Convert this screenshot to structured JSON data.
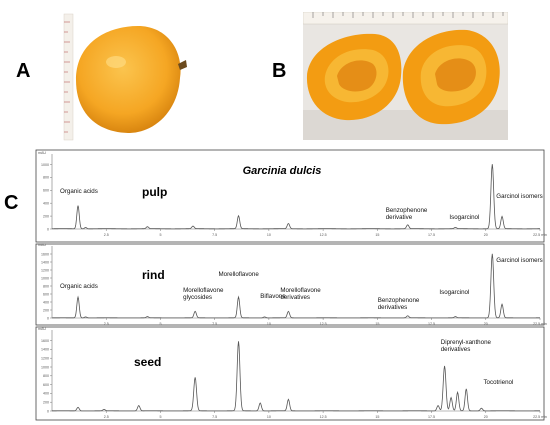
{
  "figure": {
    "panel_labels": {
      "a": "A",
      "b": "B",
      "c": "C"
    },
    "title": "Garcinia dulcis",
    "mau_label": "mAU",
    "x_ticks": [
      "2.5",
      "5",
      "7.5",
      "10",
      "12.5",
      "15",
      "17.5",
      "20",
      "22.5 min"
    ]
  },
  "chart_data": [
    {
      "type": "line",
      "panel": "pulp",
      "series_label": "pulp",
      "y_ticks": [
        "0",
        "200",
        "400",
        "600",
        "800",
        "1000"
      ],
      "ylim": [
        0,
        1100
      ],
      "xlim": [
        0,
        22.5
      ],
      "peaks": [
        {
          "x": 1.2,
          "y": 360
        },
        {
          "x": 1.55,
          "y": 20
        },
        {
          "x": 4.4,
          "y": 30
        },
        {
          "x": 6.5,
          "y": 40
        },
        {
          "x": 8.6,
          "y": 200
        },
        {
          "x": 10.9,
          "y": 80
        },
        {
          "x": 16.4,
          "y": 60
        },
        {
          "x": 18.6,
          "y": 20
        },
        {
          "x": 20.3,
          "y": 1000
        },
        {
          "x": 20.75,
          "y": 190
        }
      ],
      "annotations": [
        {
          "text": "Organic acids",
          "x": 1.2
        },
        {
          "text": "Benzophenone derivative",
          "x": 16.4
        },
        {
          "text": "Isogarcinol",
          "x": 18.6
        },
        {
          "text": "Garcinol isomers",
          "x": 20.3
        }
      ]
    },
    {
      "type": "line",
      "panel": "rind",
      "series_label": "rind",
      "y_ticks": [
        "0",
        "200",
        "400",
        "600",
        "800",
        "1000",
        "1200",
        "1400",
        "1600"
      ],
      "ylim": [
        0,
        1700
      ],
      "xlim": [
        0,
        22.5
      ],
      "peaks": [
        {
          "x": 1.2,
          "y": 520
        },
        {
          "x": 1.55,
          "y": 25
        },
        {
          "x": 4.4,
          "y": 30
        },
        {
          "x": 6.6,
          "y": 160
        },
        {
          "x": 8.6,
          "y": 520
        },
        {
          "x": 9.8,
          "y": 25
        },
        {
          "x": 10.9,
          "y": 160
        },
        {
          "x": 16.4,
          "y": 50
        },
        {
          "x": 18.6,
          "y": 30
        },
        {
          "x": 20.3,
          "y": 1600
        },
        {
          "x": 20.75,
          "y": 340
        }
      ],
      "annotations": [
        {
          "text": "Organic acids",
          "x": 1.2
        },
        {
          "text": "Morelloflavone glycosides",
          "x": 6.6
        },
        {
          "text": "Morelloflavone",
          "x": 8.6
        },
        {
          "text": "Biflavone",
          "x": 9.6
        },
        {
          "text": "Morelloflavone derivatives",
          "x": 10.9
        },
        {
          "text": "Benzophenone derivatives",
          "x": 16.4
        },
        {
          "text": "Isogarcinol",
          "x": 18.6
        },
        {
          "text": "Garcinol isomers",
          "x": 20.3
        }
      ]
    },
    {
      "type": "line",
      "panel": "seed",
      "series_label": "seed",
      "y_ticks": [
        "0",
        "200",
        "400",
        "600",
        "800",
        "1000",
        "1200",
        "1400",
        "1600"
      ],
      "ylim": [
        0,
        1750
      ],
      "xlim": [
        0,
        22.5
      ],
      "peaks": [
        {
          "x": 1.2,
          "y": 80
        },
        {
          "x": 2.4,
          "y": 30
        },
        {
          "x": 4.0,
          "y": 120
        },
        {
          "x": 6.6,
          "y": 760
        },
        {
          "x": 8.6,
          "y": 1580
        },
        {
          "x": 9.6,
          "y": 180
        },
        {
          "x": 10.9,
          "y": 260
        },
        {
          "x": 17.8,
          "y": 120
        },
        {
          "x": 18.1,
          "y": 1020
        },
        {
          "x": 18.4,
          "y": 300
        },
        {
          "x": 18.7,
          "y": 420
        },
        {
          "x": 19.1,
          "y": 500
        },
        {
          "x": 19.8,
          "y": 60
        }
      ],
      "annotations": [
        {
          "text": "Diprenyl-xanthone derivatives",
          "x": 18.2
        },
        {
          "text": "Tocotrienol",
          "x": 19.8
        }
      ]
    }
  ],
  "colors": {
    "fruit": "#f5a623",
    "fruit_light": "#f9c04a",
    "fruit_dark": "#d47f0a",
    "trace": "#555555",
    "frame": "#444444"
  }
}
